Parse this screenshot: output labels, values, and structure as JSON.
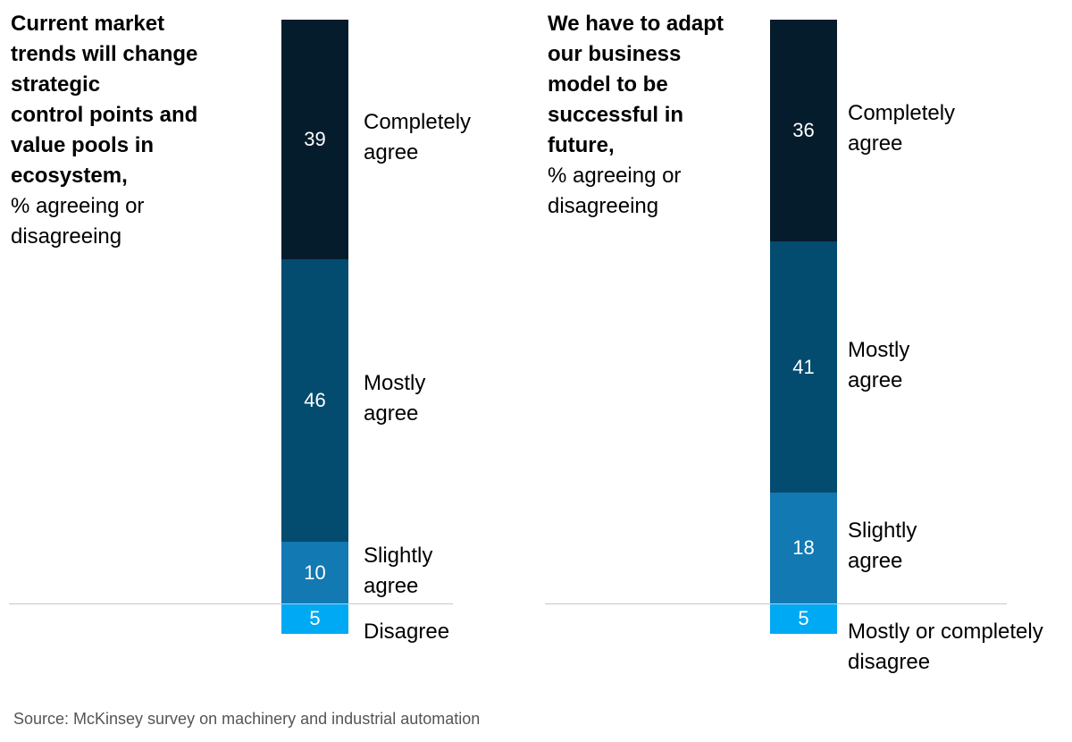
{
  "chart_data": [
    {
      "type": "bar",
      "stacked": true,
      "title": "Current market\ntrends will change\nstrategic\ncontrol points and\nvalue pools in\necosystem,",
      "subtitle": "% agreeing or\ndisagreeing",
      "series": [
        {
          "name": "Completely\nagree",
          "color": "#051c2c",
          "values": [
            39
          ]
        },
        {
          "name": "Mostly\nagree",
          "color": "#034b6f",
          "values": [
            46
          ]
        },
        {
          "name": "Slightly\nagree",
          "color": "#1279b3",
          "values": [
            10
          ]
        },
        {
          "name": "Disagree",
          "color": "#00a9f4",
          "values": [
            5
          ],
          "below_baseline": true
        }
      ]
    },
    {
      "type": "bar",
      "stacked": true,
      "title": "We have to adapt\nour business\nmodel to be\nsuccessful in\nfuture,",
      "subtitle": "% agreeing or\ndisagreeing",
      "series": [
        {
          "name": "Completely\nagree",
          "color": "#051c2c",
          "values": [
            36
          ]
        },
        {
          "name": "Mostly\nagree",
          "color": "#034b6f",
          "values": [
            41
          ]
        },
        {
          "name": "Slightly\nagree",
          "color": "#1279b3",
          "values": [
            18
          ]
        },
        {
          "name": "Mostly or completely\ndisagree",
          "color": "#00a9f4",
          "values": [
            5
          ],
          "below_baseline": true
        }
      ]
    }
  ],
  "source": "Source: McKinsey survey on machinery and industrial automation"
}
